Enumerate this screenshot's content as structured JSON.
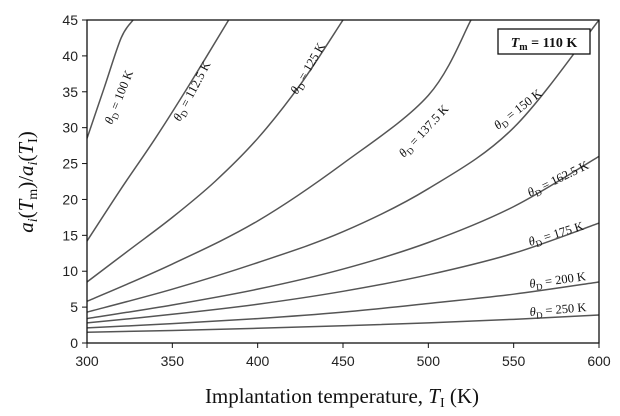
{
  "chart_data": {
    "type": "line",
    "xlabel": "Implantation temperature, T_I (K)",
    "xlabel_main": "Implantation temperature, ",
    "xlabel_var": "T",
    "xlabel_sub": "I",
    "xlabel_unit": " (K)",
    "ylabel": "a_i(T_m)/a_i(T_I)",
    "xlim": [
      300,
      600
    ],
    "ylim": [
      0,
      45
    ],
    "x_ticks": [
      "300",
      "350",
      "400",
      "450",
      "500",
      "550",
      "600"
    ],
    "y_ticks": [
      "0",
      "5",
      "10",
      "15",
      "20",
      "25",
      "30",
      "35",
      "40",
      "45"
    ],
    "grid": false,
    "legend": "none",
    "annotation": {
      "var": "T",
      "sub": "m",
      "text": " = 110 K"
    },
    "line_color": "#555555",
    "series": [
      {
        "name": "θD = 100 K",
        "theta": "θ",
        "sub": "D",
        "value_text": " = 100 K",
        "x": [
          300,
          310,
          320,
          327
        ],
        "y": [
          28.5,
          35.5,
          42.5,
          45
        ]
      },
      {
        "name": "θD = 112.5 K",
        "theta": "θ",
        "sub": "D",
        "value_text": " = 112.5 K",
        "x": [
          300,
          320,
          340,
          360,
          383
        ],
        "y": [
          14.2,
          21.5,
          28.5,
          36,
          45
        ]
      },
      {
        "name": "θD = 125 K",
        "theta": "θ",
        "sub": "D",
        "value_text": " = 125 K",
        "x": [
          300,
          325,
          350,
          375,
          400,
          425,
          450
        ],
        "y": [
          8.5,
          13,
          17.5,
          22.5,
          28.5,
          36,
          45
        ]
      },
      {
        "name": "θD = 137.5 K",
        "theta": "θ",
        "sub": "D",
        "value_text": " = 137.5 K",
        "x": [
          300,
          350,
          400,
          450,
          500,
          525
        ],
        "y": [
          5.8,
          11,
          17,
          25,
          34.5,
          45
        ]
      },
      {
        "name": "θD = 150 K",
        "theta": "θ",
        "sub": "D",
        "value_text": " = 150 K",
        "x": [
          300,
          350,
          400,
          450,
          500,
          550,
          600
        ],
        "y": [
          4.3,
          7.5,
          11.2,
          15.5,
          21.5,
          30,
          45
        ]
      },
      {
        "name": "θD = 162.5 K",
        "theta": "θ",
        "sub": "D",
        "value_text": " = 162.5 K",
        "x": [
          300,
          350,
          400,
          450,
          500,
          550,
          600
        ],
        "y": [
          3.4,
          5.3,
          7.5,
          10.3,
          14,
          19,
          26
        ]
      },
      {
        "name": "θD = 175 K",
        "theta": "θ",
        "sub": "D",
        "value_text": " = 175 K",
        "x": [
          300,
          350,
          400,
          450,
          500,
          550,
          600
        ],
        "y": [
          2.8,
          4,
          5.4,
          7.2,
          9.5,
          12.5,
          16.7
        ]
      },
      {
        "name": "θD = 200 K",
        "theta": "θ",
        "sub": "D",
        "value_text": " = 200 K",
        "x": [
          300,
          350,
          400,
          450,
          500,
          550,
          600
        ],
        "y": [
          2.1,
          2.7,
          3.4,
          4.3,
          5.5,
          6.8,
          8.5
        ]
      },
      {
        "name": "θD = 250 K",
        "theta": "θ",
        "sub": "D",
        "value_text": " = 250 K",
        "x": [
          300,
          350,
          400,
          450,
          500,
          550,
          600
        ],
        "y": [
          1.5,
          1.75,
          2.05,
          2.4,
          2.8,
          3.3,
          3.9
        ]
      }
    ]
  }
}
